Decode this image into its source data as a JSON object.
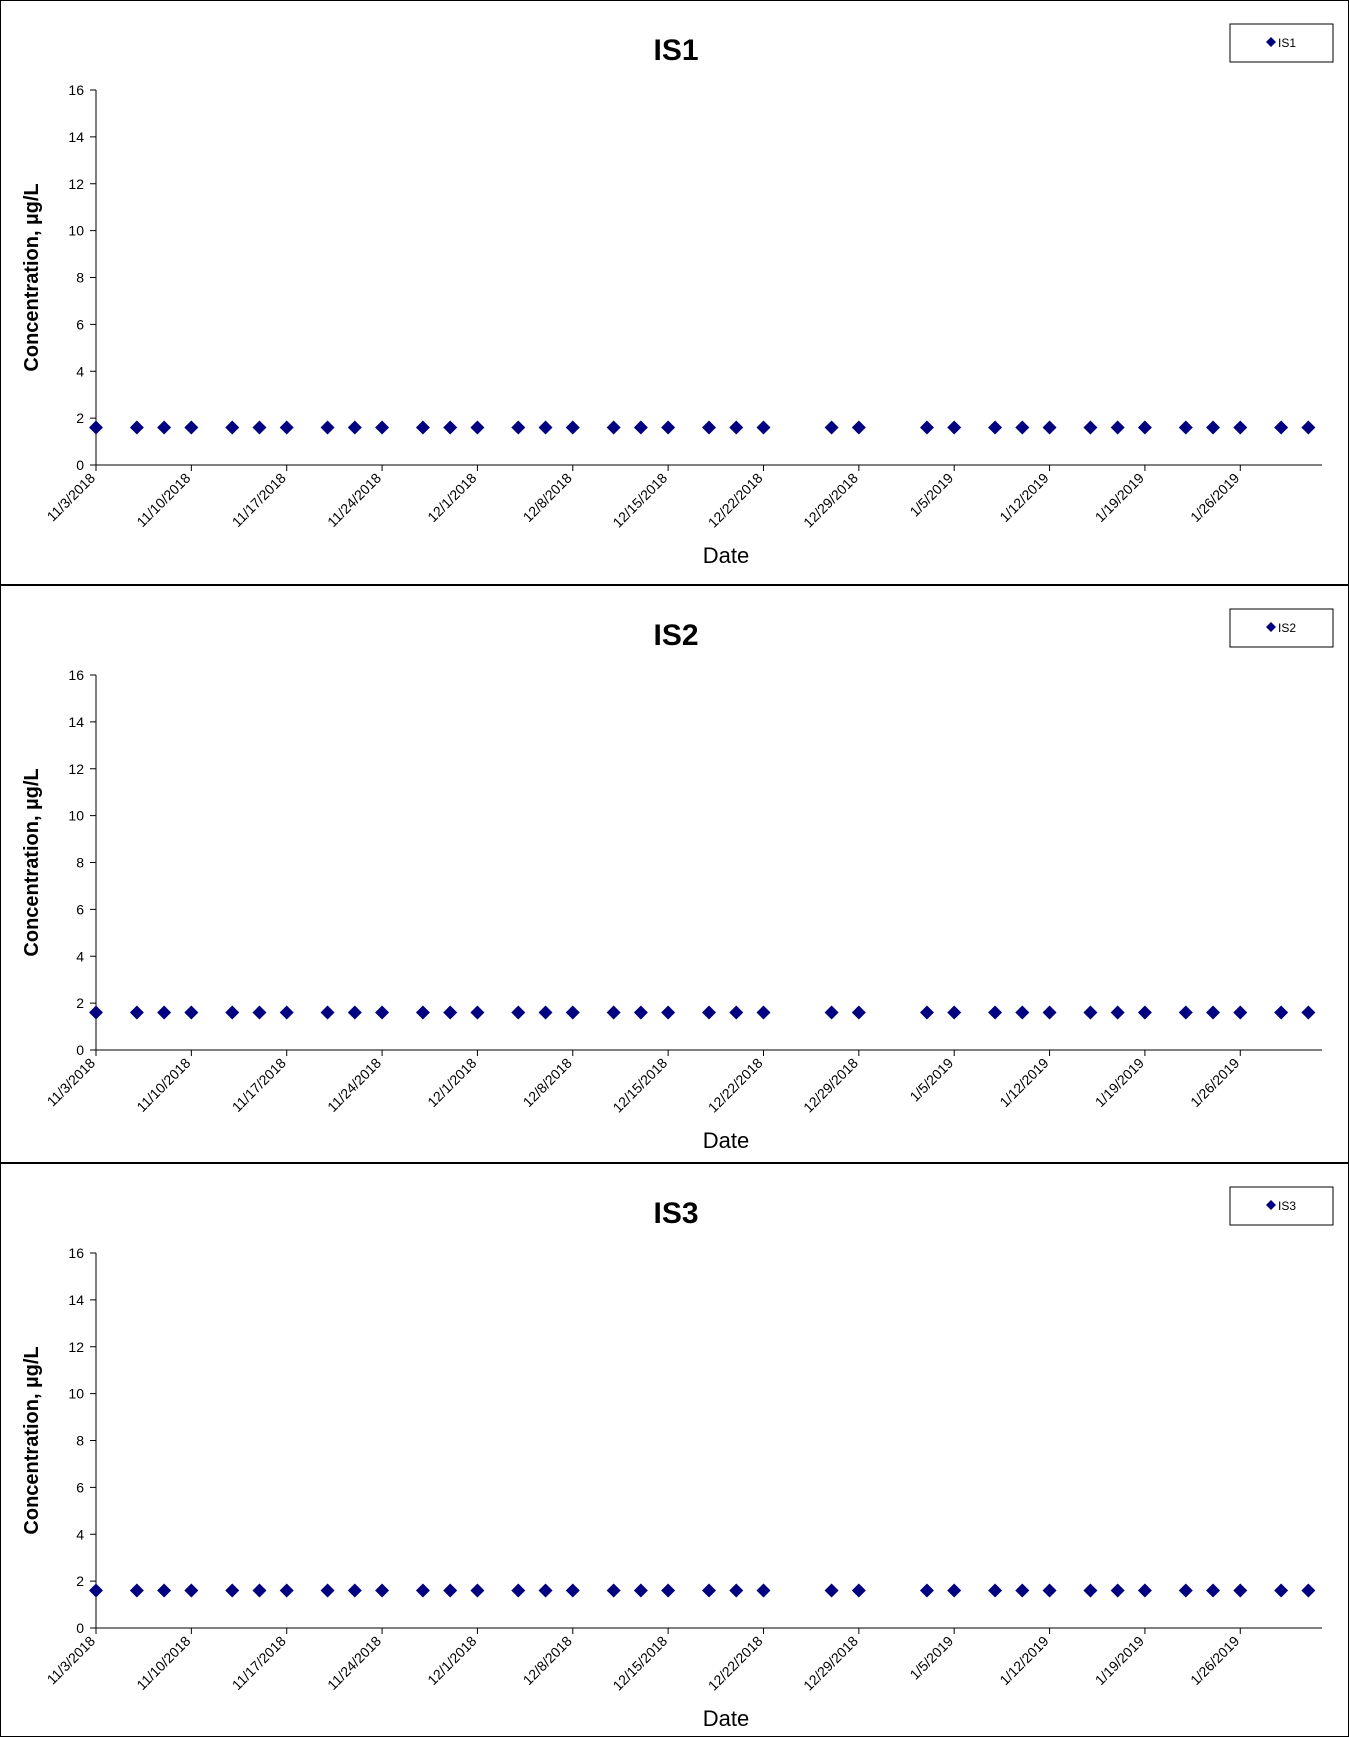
{
  "series_color": "#000080",
  "x_tick_labels": [
    "11/3/2018",
    "11/10/2018",
    "11/17/2018",
    "11/24/2018",
    "12/1/2018",
    "12/8/2018",
    "12/15/2018",
    "12/22/2018",
    "12/29/2018",
    "1/5/2019",
    "1/12/2019",
    "1/19/2019",
    "1/26/2019"
  ],
  "chart_data": [
    {
      "type": "scatter",
      "title": "IS1",
      "xlabel": "Date",
      "ylabel": "Concentration, µg/L",
      "legend": "top-right",
      "legend_entries": [
        "IS1"
      ],
      "grid": false,
      "xlim": [
        "11/3/2018",
        "2/1/2019"
      ],
      "ylim": [
        0,
        16
      ],
      "y_ticks": [
        0,
        2,
        4,
        6,
        8,
        10,
        12,
        14,
        16
      ],
      "series": [
        {
          "name": "IS1",
          "x": [
            "11/3/2018",
            "11/6/2018",
            "11/8/2018",
            "11/10/2018",
            "11/13/2018",
            "11/15/2018",
            "11/17/2018",
            "11/20/2018",
            "11/22/2018",
            "11/24/2018",
            "11/27/2018",
            "11/29/2018",
            "12/1/2018",
            "12/4/2018",
            "12/6/2018",
            "12/8/2018",
            "12/11/2018",
            "12/13/2018",
            "12/15/2018",
            "12/18/2018",
            "12/20/2018",
            "12/22/2018",
            "12/27/2018",
            "12/29/2018",
            "1/3/2019",
            "1/5/2019",
            "1/8/2019",
            "1/10/2019",
            "1/12/2019",
            "1/15/2019",
            "1/17/2019",
            "1/19/2019",
            "1/22/2019",
            "1/24/2019",
            "1/26/2019",
            "1/29/2019",
            "1/31/2019"
          ],
          "y": [
            1.6,
            1.6,
            1.6,
            1.6,
            1.6,
            1.6,
            1.6,
            1.6,
            1.6,
            1.6,
            1.6,
            1.6,
            1.6,
            1.6,
            1.6,
            1.6,
            1.6,
            1.6,
            1.6,
            1.6,
            1.6,
            1.6,
            1.6,
            1.6,
            1.6,
            1.6,
            1.6,
            1.6,
            1.6,
            1.6,
            1.6,
            1.6,
            1.6,
            1.6,
            1.6,
            1.6,
            1.6
          ]
        }
      ]
    },
    {
      "type": "scatter",
      "title": "IS2",
      "xlabel": "Date",
      "ylabel": "Concentration, µg/L",
      "legend": "top-right",
      "legend_entries": [
        "IS2"
      ],
      "grid": false,
      "xlim": [
        "11/3/2018",
        "2/1/2019"
      ],
      "ylim": [
        0,
        16
      ],
      "y_ticks": [
        0,
        2,
        4,
        6,
        8,
        10,
        12,
        14,
        16
      ],
      "series": [
        {
          "name": "IS2",
          "x": [
            "11/3/2018",
            "11/6/2018",
            "11/8/2018",
            "11/10/2018",
            "11/13/2018",
            "11/15/2018",
            "11/17/2018",
            "11/20/2018",
            "11/22/2018",
            "11/24/2018",
            "11/27/2018",
            "11/29/2018",
            "12/1/2018",
            "12/4/2018",
            "12/6/2018",
            "12/8/2018",
            "12/11/2018",
            "12/13/2018",
            "12/15/2018",
            "12/18/2018",
            "12/20/2018",
            "12/22/2018",
            "12/27/2018",
            "12/29/2018",
            "1/3/2019",
            "1/5/2019",
            "1/8/2019",
            "1/10/2019",
            "1/12/2019",
            "1/15/2019",
            "1/17/2019",
            "1/19/2019",
            "1/22/2019",
            "1/24/2019",
            "1/26/2019",
            "1/29/2019",
            "1/31/2019"
          ],
          "y": [
            1.6,
            1.6,
            1.6,
            1.6,
            1.6,
            1.6,
            1.6,
            1.6,
            1.6,
            1.6,
            1.6,
            1.6,
            1.6,
            1.6,
            1.6,
            1.6,
            1.6,
            1.6,
            1.6,
            1.6,
            1.6,
            1.6,
            1.6,
            1.6,
            1.6,
            1.6,
            1.6,
            1.6,
            1.6,
            1.6,
            1.6,
            1.6,
            1.6,
            1.6,
            1.6,
            1.6,
            1.6
          ]
        }
      ]
    },
    {
      "type": "scatter",
      "title": "IS3",
      "xlabel": "Date",
      "ylabel": "Concentration, µg/L",
      "legend": "top-right",
      "legend_entries": [
        "IS3"
      ],
      "grid": false,
      "xlim": [
        "11/3/2018",
        "2/1/2019"
      ],
      "ylim": [
        0,
        16
      ],
      "y_ticks": [
        0,
        2,
        4,
        6,
        8,
        10,
        12,
        14,
        16
      ],
      "series": [
        {
          "name": "IS3",
          "x": [
            "11/3/2018",
            "11/6/2018",
            "11/8/2018",
            "11/10/2018",
            "11/13/2018",
            "11/15/2018",
            "11/17/2018",
            "11/20/2018",
            "11/22/2018",
            "11/24/2018",
            "11/27/2018",
            "11/29/2018",
            "12/1/2018",
            "12/4/2018",
            "12/6/2018",
            "12/8/2018",
            "12/11/2018",
            "12/13/2018",
            "12/15/2018",
            "12/18/2018",
            "12/20/2018",
            "12/22/2018",
            "12/27/2018",
            "12/29/2018",
            "1/3/2019",
            "1/5/2019",
            "1/8/2019",
            "1/10/2019",
            "1/12/2019",
            "1/15/2019",
            "1/17/2019",
            "1/19/2019",
            "1/22/2019",
            "1/24/2019",
            "1/26/2019",
            "1/29/2019",
            "1/31/2019"
          ],
          "y": [
            1.6,
            1.6,
            1.6,
            1.6,
            1.6,
            1.6,
            1.6,
            1.6,
            1.6,
            1.6,
            1.6,
            1.6,
            1.6,
            1.6,
            1.6,
            1.6,
            1.6,
            1.6,
            1.6,
            1.6,
            1.6,
            1.6,
            1.6,
            1.6,
            1.6,
            1.6,
            1.6,
            1.6,
            1.6,
            1.6,
            1.6,
            1.6,
            1.6,
            1.6,
            1.6,
            1.6,
            1.6
          ]
        }
      ]
    }
  ]
}
